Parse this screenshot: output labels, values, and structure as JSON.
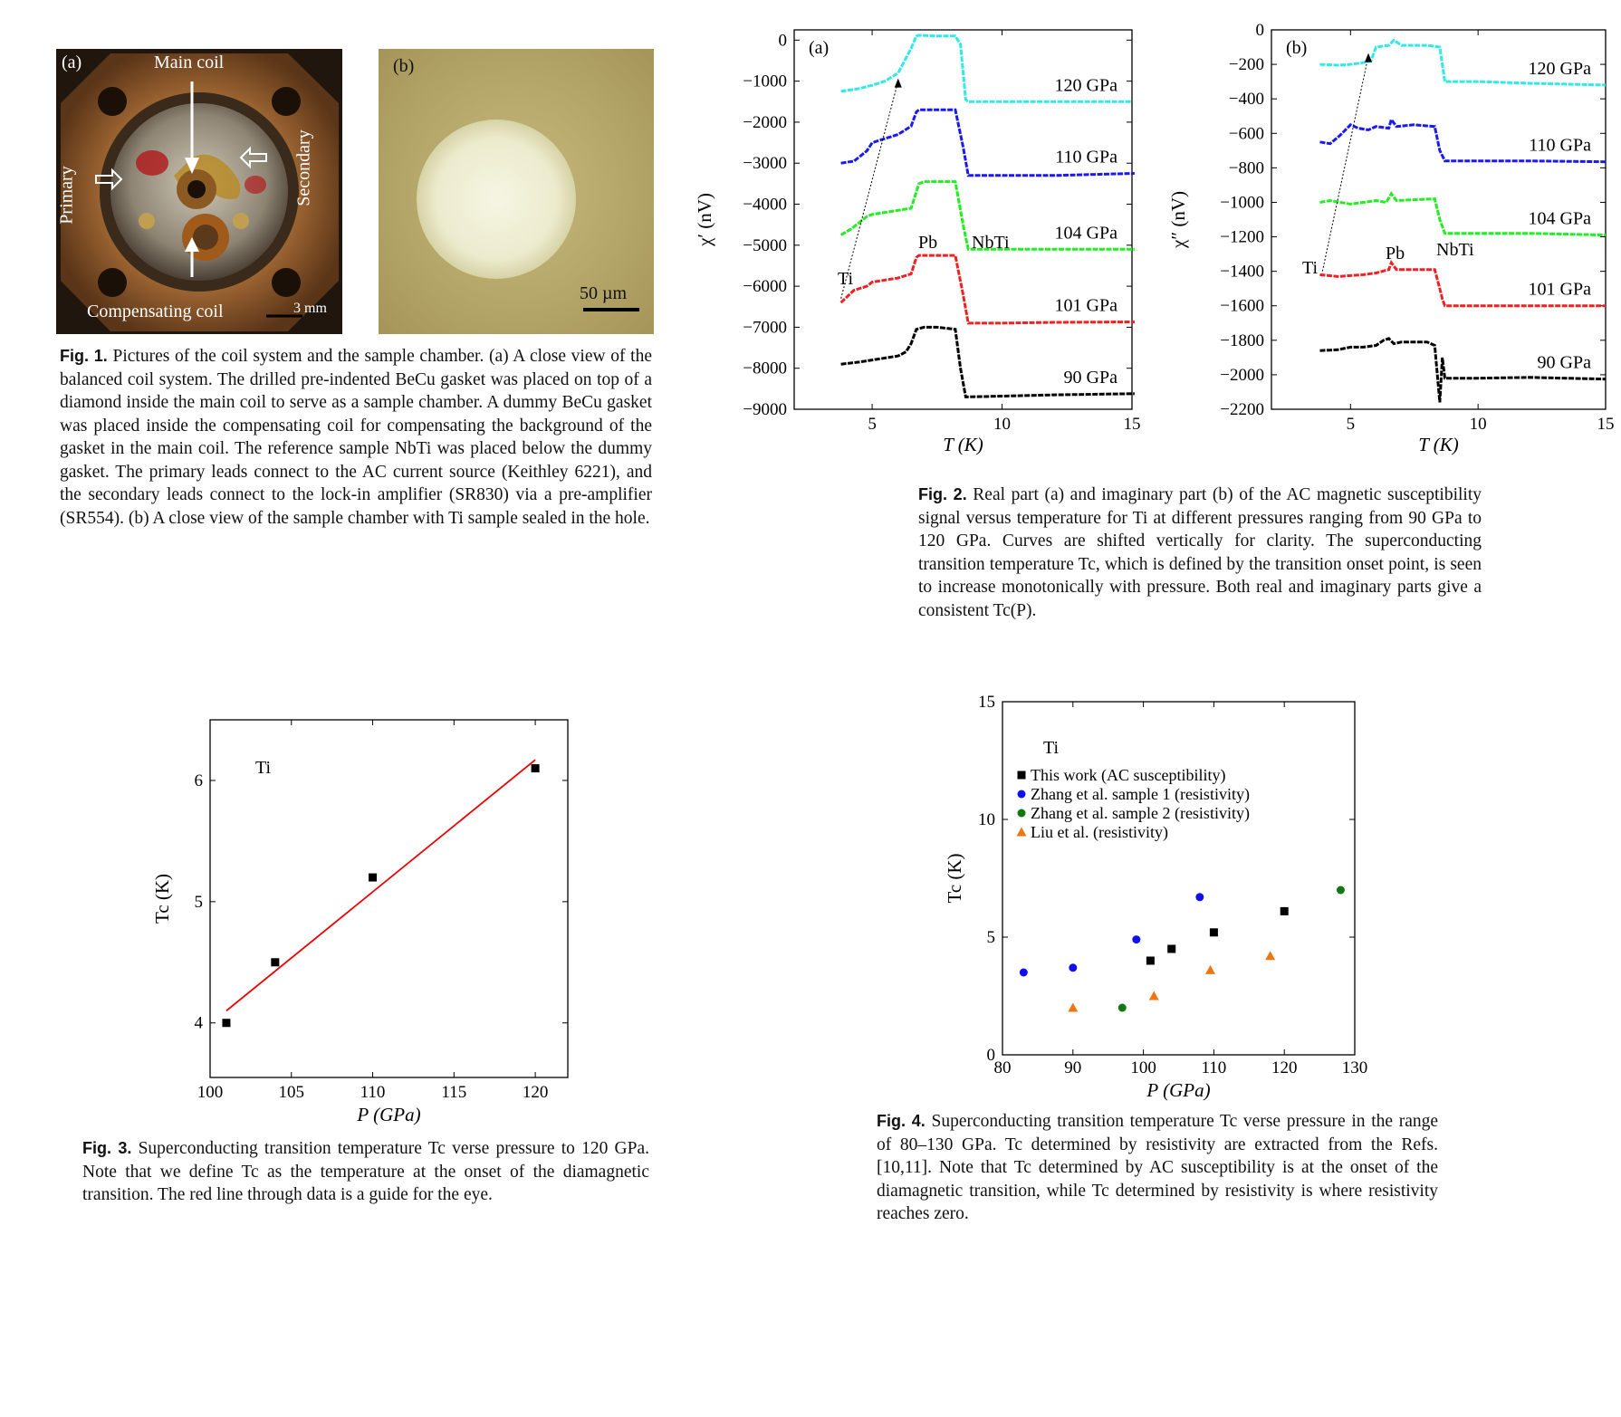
{
  "fig1": {
    "panel_a": {
      "tag": "(a)",
      "main_coil": "Main coil",
      "primary": "Primary",
      "secondary": "Secondary",
      "compensating_coil": "Compensating coil",
      "scale": "3 mm"
    },
    "panel_b": {
      "tag": "(b)",
      "scale": "50 µm"
    },
    "caption_label": "Fig. 1.",
    "caption_text": "Pictures of the coil system and the sample chamber. (a) A close view of the balanced coil system. The drilled pre-indented BeCu gasket was placed on top of a diamond inside the main coil to serve as a sample chamber. A dummy BeCu gasket was placed inside the compensating coil for compensating the background of the gasket in the main coil. The reference sample NbTi was placed below the dummy gasket. The primary leads connect to the AC current source (Keithley 6221), and the secondary leads connect to the lock-in amplifier (SR830) via a pre-amplifier (SR554). (b) A close view of the sample chamber with Ti sample sealed in the hole."
  },
  "fig2": {
    "caption_label": "Fig. 2.",
    "caption_text": "Real part (a) and imaginary part (b) of the AC magnetic susceptibility signal versus temperature for Ti at different pressures ranging from 90 GPa to 120 GPa. Curves are shifted vertically for clarity. The superconducting transition temperature Tc, which is defined by the transition onset point, is seen to increase monotonically with pressure. Both real and imaginary parts give a consistent Tc(P).",
    "colors": {
      "120 GPa": "#33e8e8",
      "110 GPa": "#1a1aee",
      "104 GPa": "#22ee22",
      "101 GPa": "#ee2222",
      "90 GPa": "#000000"
    }
  },
  "fig3": {
    "caption_label": "Fig. 3.",
    "caption_text": "Superconducting transition temperature Tc verse pressure to 120 GPa. Note that we define Tc as the temperature at the onset of the diamagnetic transition. The red line through data is a guide for the eye."
  },
  "fig4": {
    "caption_label": "Fig. 4.",
    "caption_text": "Superconducting transition temperature Tc verse pressure in the range of 80–130 GPa. Tc determined by resistivity are extracted from the Refs. [10,11]. Note that Tc determined by AC susceptibility is at the onset of the diamagnetic transition, while Tc determined by resistivity is where resistivity reaches zero."
  },
  "chart_data": [
    {
      "id": "fig2a",
      "type": "line",
      "panel_label": "(a)",
      "xlabel": "T (K)",
      "ylabel": "χ′ (nV)",
      "xlim": [
        2,
        15
      ],
      "ylim": [
        -9000,
        250
      ],
      "xticks": [
        5,
        10,
        15
      ],
      "yticks": [
        0,
        -1000,
        -2000,
        -3000,
        -4000,
        -5000,
        -6000,
        -7000,
        -8000,
        -9000
      ],
      "annotations": [
        "Ti",
        "Pb",
        "NbTi"
      ],
      "series": [
        {
          "name": "120 GPa",
          "color": "#33e8e8",
          "x": [
            3.8,
            4.5,
            5.0,
            5.5,
            6.0,
            6.5,
            6.7,
            6.8,
            7.5,
            8.2,
            8.4,
            8.6,
            8.7,
            10,
            12,
            15
          ],
          "y": [
            -1250,
            -1180,
            -1100,
            -1000,
            -800,
            -200,
            100,
            120,
            100,
            100,
            -100,
            -1450,
            -1500,
            -1500,
            -1500,
            -1500
          ]
        },
        {
          "name": "110 GPa",
          "color": "#1a1aee",
          "x": [
            3.8,
            4.3,
            4.8,
            5.0,
            5.5,
            6.0,
            6.5,
            6.7,
            6.8,
            7.5,
            8.2,
            8.5,
            8.7,
            10,
            12,
            15.1
          ],
          "y": [
            -3000,
            -2950,
            -2700,
            -2500,
            -2400,
            -2300,
            -2100,
            -1750,
            -1700,
            -1700,
            -1700,
            -2600,
            -3300,
            -3300,
            -3300,
            -3250
          ]
        },
        {
          "name": "104 GPa",
          "color": "#22ee22",
          "x": [
            3.8,
            4.2,
            4.8,
            5.0,
            5.5,
            6.0,
            6.5,
            6.8,
            7.0,
            7.5,
            8.2,
            8.5,
            8.7,
            10,
            12,
            15.1
          ],
          "y": [
            -4750,
            -4600,
            -4300,
            -4250,
            -4200,
            -4150,
            -4100,
            -3500,
            -3450,
            -3450,
            -3450,
            -4500,
            -5100,
            -5100,
            -5100,
            -5100
          ]
        },
        {
          "name": "101 GPa",
          "color": "#ee2222",
          "x": [
            3.8,
            4.3,
            4.8,
            5.0,
            5.5,
            6.0,
            6.5,
            6.7,
            6.8,
            7.5,
            8.2,
            8.5,
            8.7,
            10,
            12,
            15.1
          ],
          "y": [
            -6400,
            -6100,
            -6000,
            -5900,
            -5850,
            -5800,
            -5700,
            -5300,
            -5250,
            -5250,
            -5250,
            -6200,
            -6900,
            -6900,
            -6880,
            -6870
          ]
        },
        {
          "name": "90 GPa",
          "color": "#000000",
          "x": [
            3.8,
            4.5,
            5.0,
            5.5,
            6.0,
            6.3,
            6.5,
            6.7,
            7.0,
            7.5,
            8.2,
            8.4,
            8.6,
            10,
            12,
            15.1
          ],
          "y": [
            -7900,
            -7850,
            -7800,
            -7750,
            -7700,
            -7600,
            -7400,
            -7050,
            -7000,
            -7000,
            -7050,
            -8000,
            -8700,
            -8680,
            -8650,
            -8620
          ]
        }
      ]
    },
    {
      "id": "fig2b",
      "type": "line",
      "panel_label": "(b)",
      "xlabel": "T (K)",
      "ylabel": "χ″ (nV)",
      "xlim": [
        1.9,
        15
      ],
      "ylim": [
        -2200,
        0
      ],
      "xticks": [
        5,
        10,
        15
      ],
      "yticks": [
        0,
        -200,
        -400,
        -600,
        -800,
        -1000,
        -1200,
        -1400,
        -1600,
        -1800,
        -2000,
        -2200
      ],
      "annotations": [
        "Ti",
        "Pb",
        "NbTi"
      ],
      "series": [
        {
          "name": "120 GPa",
          "color": "#33e8e8",
          "x": [
            3.8,
            4.5,
            5.0,
            5.5,
            5.8,
            6.0,
            6.5,
            6.7,
            7.0,
            8.0,
            8.5,
            8.6,
            8.7,
            10,
            12,
            15
          ],
          "y": [
            -200,
            -205,
            -200,
            -190,
            -180,
            -100,
            -90,
            -60,
            -90,
            -90,
            -100,
            -200,
            -300,
            -300,
            -310,
            -320
          ]
        },
        {
          "name": "110 GPa",
          "color": "#1a1aee",
          "x": [
            3.8,
            4.2,
            4.6,
            5.0,
            5.3,
            5.7,
            6.0,
            6.5,
            6.6,
            6.8,
            7.5,
            8.3,
            8.5,
            8.7,
            10,
            12,
            15
          ],
          "y": [
            -650,
            -660,
            -610,
            -550,
            -570,
            -580,
            -560,
            -570,
            -520,
            -560,
            -550,
            -560,
            -700,
            -760,
            -760,
            -760,
            -765
          ]
        },
        {
          "name": "104 GPa",
          "color": "#22ee22",
          "x": [
            3.8,
            4.2,
            4.6,
            5.0,
            5.5,
            6.0,
            6.4,
            6.6,
            6.8,
            7.5,
            8.3,
            8.5,
            8.7,
            10,
            12,
            15
          ],
          "y": [
            -1000,
            -990,
            -1000,
            -1010,
            -1000,
            -990,
            -1000,
            -950,
            -990,
            -985,
            -980,
            -1100,
            -1180,
            -1180,
            -1180,
            -1190
          ]
        },
        {
          "name": "101 GPa",
          "color": "#ee2222",
          "x": [
            3.8,
            4.5,
            5.0,
            5.5,
            6.0,
            6.5,
            6.6,
            6.8,
            7.5,
            8.3,
            8.5,
            8.6,
            8.7,
            10,
            12,
            15
          ],
          "y": [
            -1420,
            -1430,
            -1425,
            -1420,
            -1410,
            -1390,
            -1350,
            -1390,
            -1390,
            -1390,
            -1500,
            -1560,
            -1600,
            -1600,
            -1600,
            -1600
          ]
        },
        {
          "name": "90 GPa",
          "color": "#000000",
          "x": [
            3.8,
            4.5,
            5.0,
            5.5,
            6.0,
            6.3,
            6.5,
            6.7,
            7.0,
            8.0,
            8.3,
            8.5,
            8.6,
            8.7,
            10,
            12,
            15
          ],
          "y": [
            -1860,
            -1855,
            -1840,
            -1840,
            -1830,
            -1800,
            -1790,
            -1820,
            -1810,
            -1810,
            -1830,
            -2160,
            -1900,
            -2020,
            -2020,
            -2015,
            -2025
          ]
        }
      ]
    },
    {
      "id": "fig3",
      "type": "scatter",
      "xlabel": "P (GPa)",
      "ylabel": "Tc (K)",
      "xlim": [
        100,
        122
      ],
      "ylim": [
        3.55,
        6.5
      ],
      "xticks": [
        100,
        105,
        110,
        115,
        120
      ],
      "yticks": [
        4,
        5,
        6
      ],
      "legend_text": "Ti",
      "series": [
        {
          "color": "#000000",
          "x": [
            101,
            104,
            110,
            120
          ],
          "y": [
            4.0,
            4.5,
            5.2,
            6.1
          ]
        }
      ],
      "fit_line": {
        "color": "#ee0000",
        "x": [
          101,
          120
        ],
        "y": [
          4.1,
          6.17
        ]
      }
    },
    {
      "id": "fig4",
      "type": "scatter",
      "xlabel": "P (GPa)",
      "ylabel": "Tc (K)",
      "xlim": [
        80,
        130
      ],
      "ylim": [
        0,
        15
      ],
      "xticks": [
        80,
        90,
        100,
        110,
        120,
        130
      ],
      "yticks": [
        0,
        5,
        10,
        15
      ],
      "legend_title": "Ti",
      "series": [
        {
          "name": "This work (AC susceptibility)",
          "marker": "square",
          "color": "#000000",
          "x": [
            101,
            104,
            110,
            120
          ],
          "y": [
            4.0,
            4.5,
            5.2,
            6.1
          ]
        },
        {
          "name": "Zhang et al. sample 1 (resistivity)",
          "marker": "circle",
          "color": "#1010ee",
          "x": [
            83,
            90,
            99,
            108
          ],
          "y": [
            3.5,
            3.7,
            4.9,
            6.7
          ]
        },
        {
          "name": "Zhang et al. sample 2 (resistivity)",
          "marker": "circle",
          "color": "#117711",
          "x": [
            97,
            128
          ],
          "y": [
            2.0,
            7.0
          ]
        },
        {
          "name": "Liu et al. (resistivity)",
          "marker": "triangle",
          "color": "#ee7711",
          "x": [
            90,
            101.5,
            109.5,
            118
          ],
          "y": [
            2.0,
            2.5,
            3.6,
            4.2
          ]
        }
      ]
    }
  ]
}
